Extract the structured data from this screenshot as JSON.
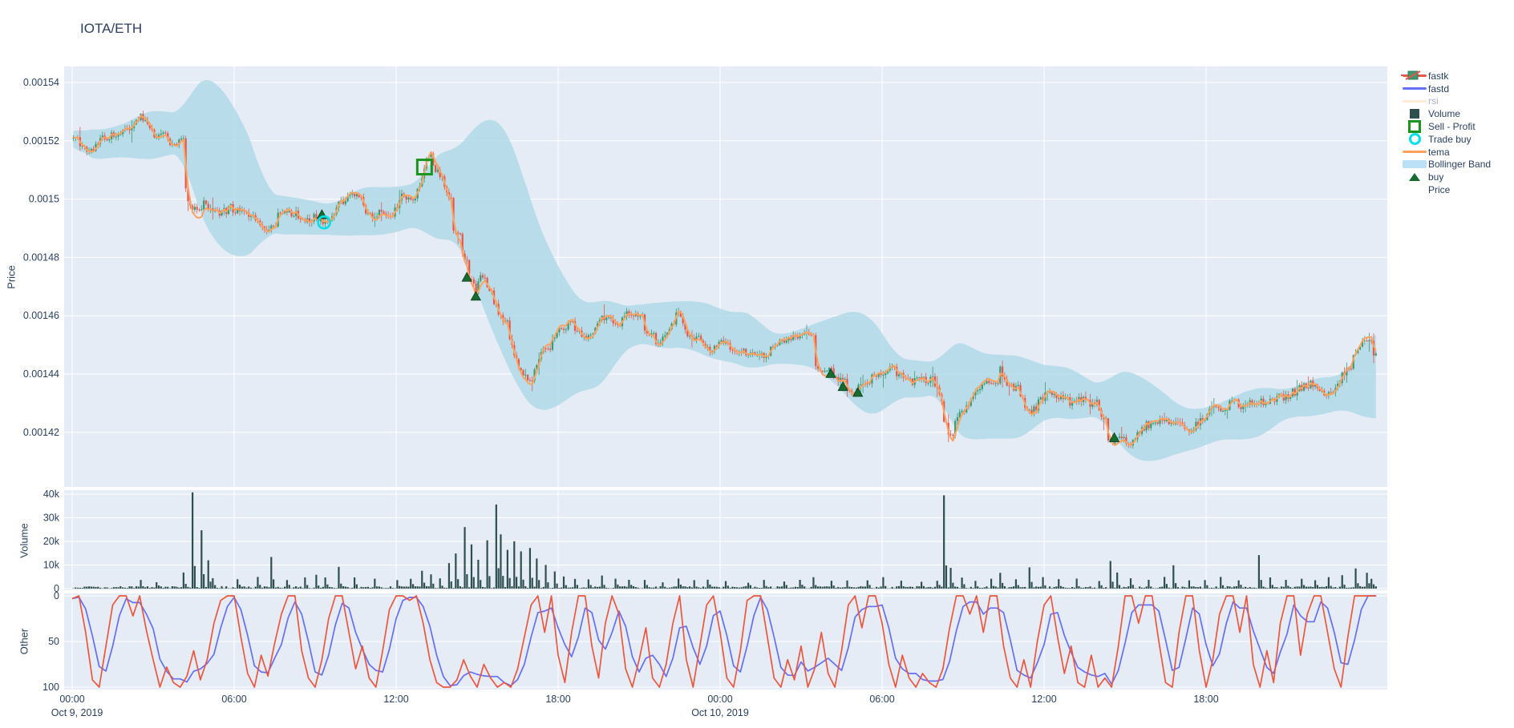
{
  "title": "IOTA/ETH",
  "colors": {
    "font": "#2a3f5f",
    "plot_bg": "#e5ecf6",
    "grid": "#ffffff",
    "candle_up": "#3d9970",
    "candle_down": "#e8554a",
    "bollinger_fill": "#add8e6",
    "tema": "#ffa15a",
    "volume_bar": "#2f4f4f",
    "fastk": "#ef553b",
    "fastd": "#636efa",
    "rsi_muted": "#ffd9b0",
    "buy_marker": "#166b2f",
    "sell_profit": "#1a941a",
    "trade_buy": "#00e0e9",
    "muted_text": "#aab2bf"
  },
  "axes": {
    "price": {
      "label": "Price",
      "ticks": [
        "0.00154",
        "0.00152",
        "0.0015",
        "0.00148",
        "0.00146",
        "0.00144",
        "0.00142"
      ],
      "tick_values_micro": [
        1540,
        1520,
        1500,
        1480,
        1460,
        1440,
        1420
      ]
    },
    "volume": {
      "label": "Volume",
      "ticks": [
        "40k",
        "30k",
        "20k",
        "10k",
        "0"
      ],
      "tick_values": [
        40000,
        30000,
        20000,
        10000,
        0
      ]
    },
    "other": {
      "label": "Other",
      "ticks": [
        "100",
        "50",
        "0"
      ],
      "tick_values": [
        100,
        50,
        0
      ]
    },
    "x": {
      "ticks": [
        {
          "label": "00:00",
          "t": 0
        },
        {
          "label": "06:00",
          "t": 6
        },
        {
          "label": "12:00",
          "t": 12
        },
        {
          "label": "18:00",
          "t": 18
        },
        {
          "label": "00:00",
          "t": 24
        },
        {
          "label": "06:00",
          "t": 30
        },
        {
          "label": "12:00",
          "t": 36
        },
        {
          "label": "18:00",
          "t": 42
        }
      ],
      "date_labels": [
        {
          "label": "Oct 9, 2019",
          "t": 0.18
        },
        {
          "label": "Oct 10, 2019",
          "t": 24
        }
      ]
    }
  },
  "legend": [
    {
      "id": "fastk",
      "label": "fastk",
      "swatch": "line",
      "color": "#ef553b",
      "muted": false
    },
    {
      "id": "fastd",
      "label": "fastd",
      "swatch": "line",
      "color": "#636efa",
      "muted": false
    },
    {
      "id": "rsi",
      "label": "rsi",
      "swatch": "line",
      "color": "#ffd9b0",
      "muted": true
    },
    {
      "id": "volume",
      "label": "Volume",
      "swatch": "square",
      "color": "#2f4f4f",
      "muted": false
    },
    {
      "id": "sell-profit",
      "label": "Sell - Profit",
      "swatch": "square-open",
      "color": "#1a941a",
      "muted": false
    },
    {
      "id": "trade-buy",
      "label": "Trade buy",
      "swatch": "circle-open",
      "color": "#00e0e9",
      "muted": false
    },
    {
      "id": "tema",
      "label": "tema",
      "swatch": "line",
      "color": "#ffa15a",
      "muted": false
    },
    {
      "id": "bollinger",
      "label": "Bollinger Band",
      "swatch": "band",
      "color": "#bce0f5",
      "muted": false
    },
    {
      "id": "buy",
      "label": "buy",
      "swatch": "triangle",
      "color": "#166b2f",
      "muted": false
    },
    {
      "id": "price",
      "label": "Price",
      "swatch": "candle",
      "color": "#3d9970",
      "muted": false
    }
  ],
  "chart_data": {
    "type": "candlestick",
    "pair": "IOTA/ETH",
    "x_start": "Oct 9, 2019 00:00",
    "hours_span": 48.3,
    "interval_minutes": 5,
    "price_scale": 1e-06,
    "price_range_micro": [
      1401,
      1546
    ],
    "price_anchors_micro": [
      [
        0,
        1521
      ],
      [
        0.25,
        1519
      ],
      [
        0.5,
        1516
      ],
      [
        0.8,
        1517
      ],
      [
        1.1,
        1522
      ],
      [
        1.4,
        1521
      ],
      [
        1.7,
        1523
      ],
      [
        2.0,
        1524
      ],
      [
        2.3,
        1526
      ],
      [
        2.5,
        1529
      ],
      [
        2.7,
        1527
      ],
      [
        2.9,
        1523
      ],
      [
        3.2,
        1522
      ],
      [
        3.5,
        1521
      ],
      [
        3.8,
        1518
      ],
      [
        4.0,
        1522
      ],
      [
        4.1,
        1517
      ],
      [
        4.25,
        1498
      ],
      [
        4.5,
        1497
      ],
      [
        4.8,
        1499
      ],
      [
        5.1,
        1496
      ],
      [
        5.5,
        1495
      ],
      [
        5.9,
        1497
      ],
      [
        6.3,
        1496
      ],
      [
        6.7,
        1494
      ],
      [
        7.1,
        1490
      ],
      [
        7.3,
        1488
      ],
      [
        7.6,
        1494
      ],
      [
        8.0,
        1496
      ],
      [
        8.4,
        1494
      ],
      [
        8.8,
        1493
      ],
      [
        9.2,
        1494
      ],
      [
        9.35,
        1492
      ],
      [
        9.6,
        1494
      ],
      [
        9.9,
        1498
      ],
      [
        10.3,
        1502
      ],
      [
        10.7,
        1500
      ],
      [
        11.0,
        1494
      ],
      [
        11.35,
        1497
      ],
      [
        11.7,
        1495
      ],
      [
        12.0,
        1499
      ],
      [
        12.3,
        1501
      ],
      [
        12.6,
        1498
      ],
      [
        12.85,
        1504
      ],
      [
        13.05,
        1512
      ],
      [
        13.25,
        1515
      ],
      [
        13.5,
        1510
      ],
      [
        13.75,
        1506
      ],
      [
        13.95,
        1500
      ],
      [
        14.1,
        1490
      ],
      [
        14.35,
        1483
      ],
      [
        14.65,
        1475
      ],
      [
        14.95,
        1468
      ],
      [
        15.15,
        1474
      ],
      [
        15.4,
        1470
      ],
      [
        15.65,
        1462
      ],
      [
        15.9,
        1459
      ],
      [
        16.15,
        1453
      ],
      [
        16.45,
        1444
      ],
      [
        16.8,
        1436
      ],
      [
        17.1,
        1441
      ],
      [
        17.4,
        1447
      ],
      [
        17.8,
        1452
      ],
      [
        18.2,
        1460
      ],
      [
        18.5,
        1455
      ],
      [
        18.8,
        1452
      ],
      [
        19.1,
        1452
      ],
      [
        19.5,
        1459
      ],
      [
        19.8,
        1460
      ],
      [
        20.1,
        1456
      ],
      [
        20.45,
        1461
      ],
      [
        20.8,
        1462
      ],
      [
        21.1,
        1458
      ],
      [
        21.45,
        1451
      ],
      [
        21.8,
        1452
      ],
      [
        22.1,
        1456
      ],
      [
        22.4,
        1462
      ],
      [
        22.7,
        1454
      ],
      [
        23.1,
        1452
      ],
      [
        23.5,
        1448
      ],
      [
        23.8,
        1450
      ],
      [
        24.0,
        1452
      ],
      [
        24.3,
        1450
      ],
      [
        24.6,
        1446
      ],
      [
        24.9,
        1448
      ],
      [
        25.3,
        1445
      ],
      [
        25.7,
        1447
      ],
      [
        26.1,
        1450
      ],
      [
        26.5,
        1453
      ],
      [
        26.9,
        1453
      ],
      [
        27.3,
        1453
      ],
      [
        27.45,
        1443
      ],
      [
        27.7,
        1441
      ],
      [
        28.1,
        1441
      ],
      [
        28.4,
        1438
      ],
      [
        28.65,
        1436
      ],
      [
        28.9,
        1434
      ],
      [
        29.15,
        1435
      ],
      [
        29.5,
        1438
      ],
      [
        29.9,
        1441
      ],
      [
        30.2,
        1442
      ],
      [
        30.5,
        1441
      ],
      [
        30.8,
        1438
      ],
      [
        31.1,
        1437
      ],
      [
        31.5,
        1439
      ],
      [
        31.9,
        1437
      ],
      [
        32.1,
        1433
      ],
      [
        32.2,
        1431
      ],
      [
        32.35,
        1419
      ],
      [
        32.6,
        1422
      ],
      [
        32.9,
        1426
      ],
      [
        33.2,
        1430
      ],
      [
        33.5,
        1434
      ],
      [
        33.8,
        1436
      ],
      [
        34.1,
        1438
      ],
      [
        34.3,
        1443
      ],
      [
        34.5,
        1438
      ],
      [
        34.8,
        1436
      ],
      [
        35.1,
        1433
      ],
      [
        35.45,
        1426
      ],
      [
        35.8,
        1430
      ],
      [
        36.1,
        1434
      ],
      [
        36.5,
        1432
      ],
      [
        36.9,
        1430
      ],
      [
        37.3,
        1432
      ],
      [
        37.7,
        1430
      ],
      [
        38.0,
        1430
      ],
      [
        38.2,
        1424
      ],
      [
        38.4,
        1417
      ],
      [
        38.7,
        1418
      ],
      [
        39.0,
        1416
      ],
      [
        39.35,
        1419
      ],
      [
        39.7,
        1422
      ],
      [
        40.1,
        1424
      ],
      [
        40.5,
        1424
      ],
      [
        40.9,
        1423
      ],
      [
        41.3,
        1421
      ],
      [
        41.7,
        1423
      ],
      [
        42.2,
        1428
      ],
      [
        42.6,
        1428
      ],
      [
        43.0,
        1430
      ],
      [
        43.4,
        1429
      ],
      [
        43.9,
        1431
      ],
      [
        44.3,
        1430
      ],
      [
        44.7,
        1432
      ],
      [
        45.1,
        1433
      ],
      [
        45.5,
        1435
      ],
      [
        45.9,
        1437
      ],
      [
        46.2,
        1435
      ],
      [
        46.5,
        1432
      ],
      [
        46.8,
        1436
      ],
      [
        47.1,
        1440
      ],
      [
        47.4,
        1444
      ],
      [
        47.7,
        1450
      ],
      [
        47.9,
        1452
      ],
      [
        48.0,
        1449
      ],
      [
        48.3,
        1447
      ]
    ],
    "volume_spikes_k": [
      [
        2.5,
        3.5
      ],
      [
        3.1,
        2.5
      ],
      [
        4.1,
        6
      ],
      [
        4.43,
        40.5
      ],
      [
        4.78,
        24
      ],
      [
        5.0,
        11
      ],
      [
        5.2,
        4
      ],
      [
        6.1,
        3
      ],
      [
        6.8,
        4
      ],
      [
        7.33,
        12.5
      ],
      [
        7.9,
        3
      ],
      [
        8.6,
        4
      ],
      [
        9.0,
        5
      ],
      [
        9.35,
        4
      ],
      [
        9.86,
        8.5
      ],
      [
        10.4,
        4
      ],
      [
        11.2,
        3.5
      ],
      [
        12.0,
        3
      ],
      [
        12.5,
        4
      ],
      [
        12.9,
        7
      ],
      [
        13.25,
        5
      ],
      [
        13.6,
        4
      ],
      [
        13.95,
        10
      ],
      [
        14.2,
        14
      ],
      [
        14.5,
        25.5
      ],
      [
        14.75,
        18
      ],
      [
        15.0,
        12
      ],
      [
        15.35,
        20
      ],
      [
        15.65,
        35
      ],
      [
        15.85,
        22
      ],
      [
        16.1,
        16
      ],
      [
        16.35,
        19
      ],
      [
        16.6,
        15
      ],
      [
        16.9,
        17
      ],
      [
        17.2,
        12
      ],
      [
        17.5,
        9
      ],
      [
        17.8,
        7
      ],
      [
        18.2,
        5
      ],
      [
        18.6,
        4
      ],
      [
        19.1,
        3.5
      ],
      [
        19.6,
        5
      ],
      [
        20.1,
        4
      ],
      [
        20.6,
        3
      ],
      [
        21.2,
        3.5
      ],
      [
        21.8,
        2.5
      ],
      [
        22.4,
        4
      ],
      [
        23.0,
        3
      ],
      [
        23.5,
        3.5
      ],
      [
        24.2,
        2.5
      ],
      [
        25.0,
        2
      ],
      [
        25.6,
        3
      ],
      [
        26.3,
        2.5
      ],
      [
        26.9,
        3
      ],
      [
        27.45,
        4
      ],
      [
        28.1,
        3
      ],
      [
        28.7,
        2.5
      ],
      [
        29.4,
        3
      ],
      [
        30.0,
        4
      ],
      [
        30.7,
        2.5
      ],
      [
        31.4,
        2
      ],
      [
        32.0,
        3
      ],
      [
        32.27,
        38.5
      ],
      [
        32.5,
        8
      ],
      [
        32.9,
        4.5
      ],
      [
        33.4,
        3
      ],
      [
        34.0,
        4
      ],
      [
        34.3,
        6
      ],
      [
        34.9,
        3
      ],
      [
        35.45,
        8
      ],
      [
        35.9,
        4
      ],
      [
        36.5,
        3
      ],
      [
        37.2,
        3.5
      ],
      [
        38.0,
        3
      ],
      [
        38.4,
        11
      ],
      [
        38.7,
        6
      ],
      [
        39.2,
        3.5
      ],
      [
        39.8,
        3
      ],
      [
        40.4,
        4
      ],
      [
        40.75,
        9
      ],
      [
        41.3,
        3
      ],
      [
        41.9,
        3.5
      ],
      [
        42.5,
        4
      ],
      [
        43.2,
        3
      ],
      [
        43.9,
        14
      ],
      [
        44.3,
        4
      ],
      [
        44.9,
        3.5
      ],
      [
        45.5,
        4
      ],
      [
        46.0,
        3
      ],
      [
        46.5,
        4.5
      ],
      [
        47.0,
        5
      ],
      [
        47.5,
        8
      ],
      [
        47.9,
        6
      ],
      [
        48.1,
        4
      ]
    ],
    "fastk_15min": [
      97,
      100,
      60,
      8,
      0,
      45,
      90,
      100,
      100,
      78,
      100,
      62,
      30,
      0,
      22,
      5,
      0,
      12,
      40,
      8,
      30,
      70,
      95,
      100,
      100,
      55,
      15,
      0,
      35,
      12,
      48,
      80,
      100,
      100,
      40,
      10,
      0,
      30,
      75,
      100,
      100,
      60,
      20,
      45,
      10,
      0,
      40,
      85,
      100,
      100,
      95,
      100,
      70,
      30,
      5,
      0,
      0,
      8,
      30,
      12,
      0,
      25,
      10,
      0,
      5,
      0,
      20,
      55,
      90,
      100,
      60,
      100,
      35,
      5,
      60,
      100,
      100,
      45,
      10,
      70,
      100,
      80,
      20,
      0,
      30,
      65,
      10,
      0,
      25,
      70,
      100,
      30,
      0,
      45,
      90,
      100,
      60,
      10,
      0,
      40,
      95,
      100,
      100,
      55,
      10,
      0,
      30,
      8,
      45,
      0,
      20,
      60,
      15,
      0,
      40,
      90,
      100,
      65,
      100,
      100,
      70,
      25,
      0,
      35,
      10,
      0,
      15,
      5,
      0,
      20,
      65,
      100,
      100,
      80,
      100,
      60,
      100,
      100,
      45,
      10,
      0,
      30,
      0,
      50,
      90,
      100,
      55,
      15,
      45,
      5,
      0,
      35,
      0,
      10,
      0,
      45,
      100,
      100,
      70,
      100,
      100,
      50,
      5,
      0,
      60,
      100,
      100,
      40,
      0,
      30,
      80,
      100,
      100,
      60,
      100,
      25,
      0,
      40,
      5,
      70,
      100,
      100,
      35,
      80,
      100,
      100,
      60,
      20,
      0,
      55,
      100,
      100
    ],
    "fastd_smoothing": 3,
    "rsi_visible": false,
    "bollinger": {
      "window": 36,
      "k": 2.1
    },
    "tema": {
      "span": 8
    },
    "markers": {
      "buy": [
        [
          9.25,
          1495.5
        ],
        [
          14.62,
          1474
        ],
        [
          14.95,
          1467.5
        ],
        [
          28.1,
          1441
        ],
        [
          28.55,
          1436.5
        ],
        [
          29.1,
          1434.5
        ],
        [
          38.6,
          1419
        ]
      ],
      "trade_buy": [
        [
          9.33,
          1492
        ]
      ],
      "sell_profit": [
        [
          13.05,
          1511
        ]
      ]
    },
    "seed": 77
  }
}
